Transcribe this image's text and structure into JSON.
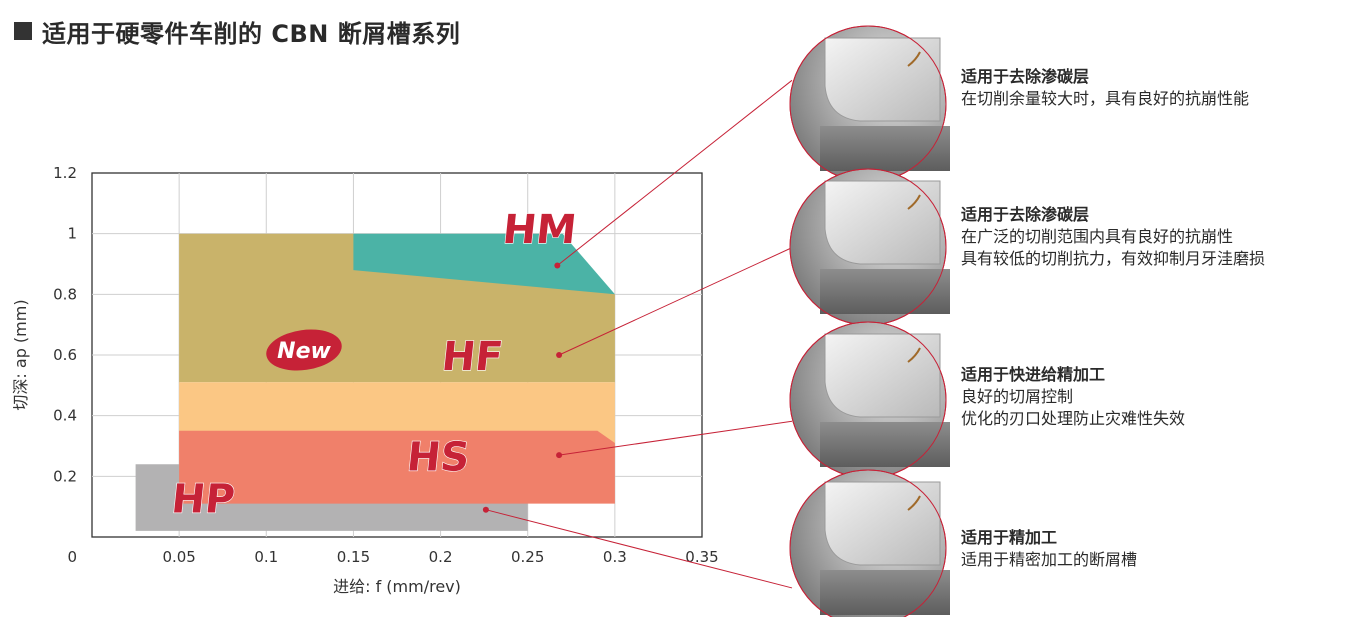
{
  "title": "适用于硬零件车削的 CBN 断屑槽系列",
  "chart_data": {
    "type": "area",
    "xlabel": "进给: f (mm/rev)",
    "ylabel": "切深: ap (mm)",
    "xlim": [
      0,
      0.35
    ],
    "ylim": [
      0,
      1.2
    ],
    "x_ticks": [
      "0.05",
      "0.1",
      "0.15",
      "0.2",
      "0.25",
      "0.3",
      "0.35"
    ],
    "y_ticks": [
      "0.2",
      "0.4",
      "0.6",
      "0.8",
      "1",
      "1.2"
    ],
    "origin_label": "0",
    "grid": true,
    "new_badge": "New",
    "series": [
      {
        "name": "HM",
        "color": "#4bb3a6",
        "points": [
          [
            0.15,
            1.0
          ],
          [
            0.27,
            1.0
          ],
          [
            0.3,
            0.8
          ],
          [
            0.15,
            0.88
          ]
        ],
        "label_pos": [
          0.235,
          0.97
        ],
        "marker": [
          0.267,
          0.895
        ]
      },
      {
        "name": "HF",
        "color": "#c9b36a",
        "points": [
          [
            0.05,
            1.0
          ],
          [
            0.15,
            1.0
          ],
          [
            0.3,
            0.8
          ],
          [
            0.3,
            0.51
          ],
          [
            0.05,
            0.51
          ]
        ],
        "label_pos": [
          0.2,
          0.55
        ],
        "marker": [
          0.268,
          0.6
        ]
      },
      {
        "name": "",
        "color": "#fbc784",
        "points": [
          [
            0.05,
            0.51
          ],
          [
            0.3,
            0.51
          ],
          [
            0.3,
            0.28
          ],
          [
            0.05,
            0.28
          ]
        ]
      },
      {
        "name": "HS",
        "color": "#f0806a",
        "points": [
          [
            0.05,
            0.35
          ],
          [
            0.29,
            0.35
          ],
          [
            0.3,
            0.31
          ],
          [
            0.3,
            0.11
          ],
          [
            0.05,
            0.11
          ]
        ],
        "label_pos": [
          0.18,
          0.22
        ],
        "marker": [
          0.268,
          0.27
        ]
      },
      {
        "name": "HP",
        "color": "#b3b2b3",
        "points": [
          [
            0.025,
            0.24
          ],
          [
            0.23,
            0.24
          ],
          [
            0.25,
            0.2
          ],
          [
            0.25,
            0.02
          ],
          [
            0.025,
            0.02
          ]
        ],
        "label_pos": [
          0.045,
          0.08
        ],
        "marker": [
          0.226,
          0.09
        ]
      }
    ]
  },
  "features": [
    {
      "heading": "适用于去除渗碳层",
      "lines": [
        "在切削余量较大时，具有良好的抗崩性能"
      ]
    },
    {
      "heading": "适用于去除渗碳层",
      "lines": [
        "在广泛的切削范围内具有良好的抗崩性",
        "具有较低的切削抗力，有效抑制月牙洼磨损"
      ]
    },
    {
      "heading": "适用于快进给精加工",
      "lines": [
        "良好的切屑控制",
        "优化的刃口处理防止灾难性失效"
      ]
    },
    {
      "heading": "适用于精加工",
      "lines": [
        "适用于精密加工的断屑槽"
      ]
    }
  ]
}
